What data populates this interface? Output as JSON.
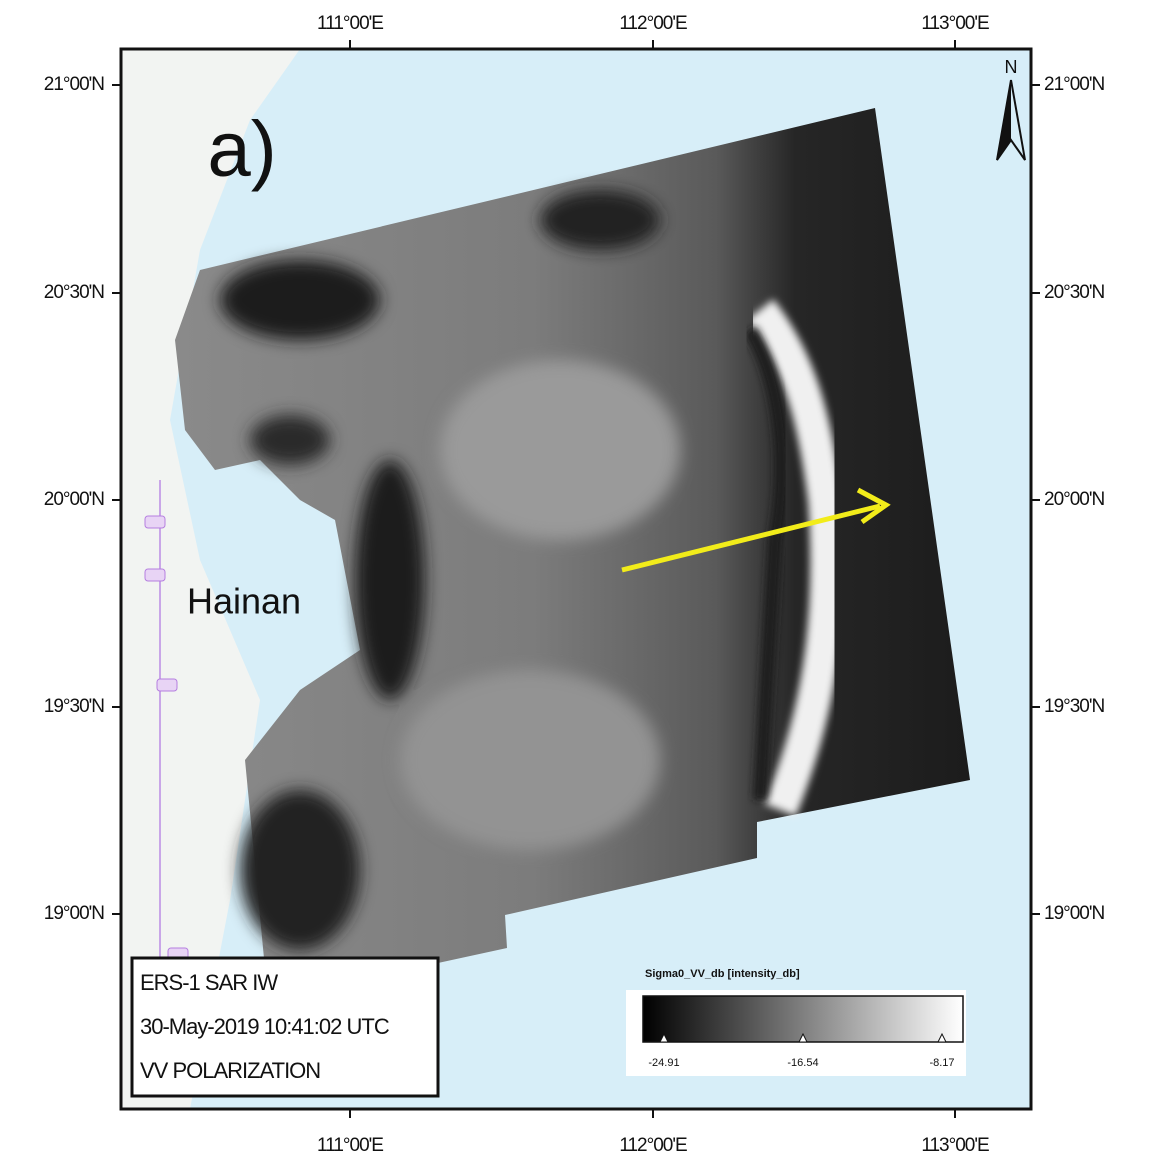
{
  "panel_label": "a)",
  "place_label": "Hainan",
  "north_label": "N",
  "longitude_labels": [
    "111°00'E",
    "112°00'E",
    "113°00'E"
  ],
  "latitude_labels": [
    "21°00'N",
    "20°30'N",
    "20°00'N",
    "19°30'N",
    "19°00'N"
  ],
  "info_box": {
    "lines": [
      "ERS-1 SAR IW",
      "30-May-2019 10:41:02 UTC",
      "VV POLARIZATION"
    ]
  },
  "colorbar": {
    "title": "Sigma0_VV_db [intensity_db]",
    "ticks": [
      -24.91,
      -16.54,
      -8.17
    ]
  }
}
